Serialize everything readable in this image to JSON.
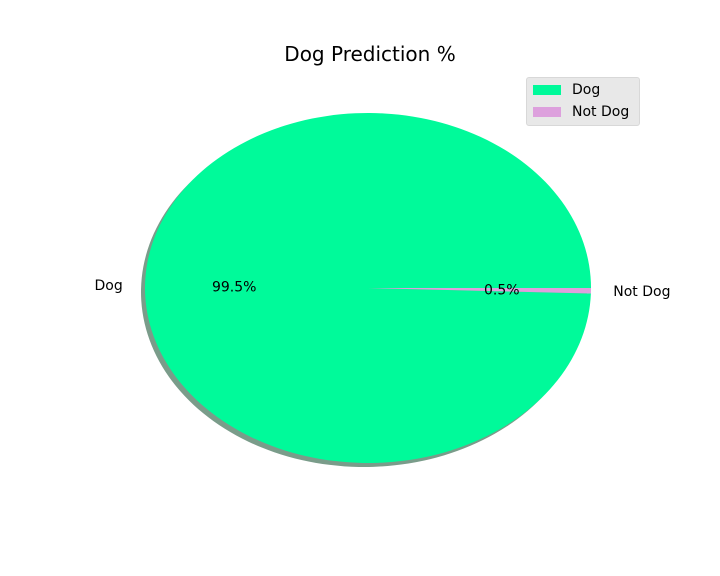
{
  "chart_data": {
    "type": "pie",
    "title": "Dog Prediction %",
    "categories": [
      "Dog",
      "Not Dog"
    ],
    "values": [
      99.5,
      0.5
    ],
    "percent_labels": [
      "99.5%",
      "0.5%"
    ],
    "colors": [
      "#00fa9a",
      "#dda0dd"
    ],
    "shadow": true,
    "legend": {
      "placement": "top-right",
      "entries": [
        "Dog",
        "Not Dog"
      ]
    }
  }
}
